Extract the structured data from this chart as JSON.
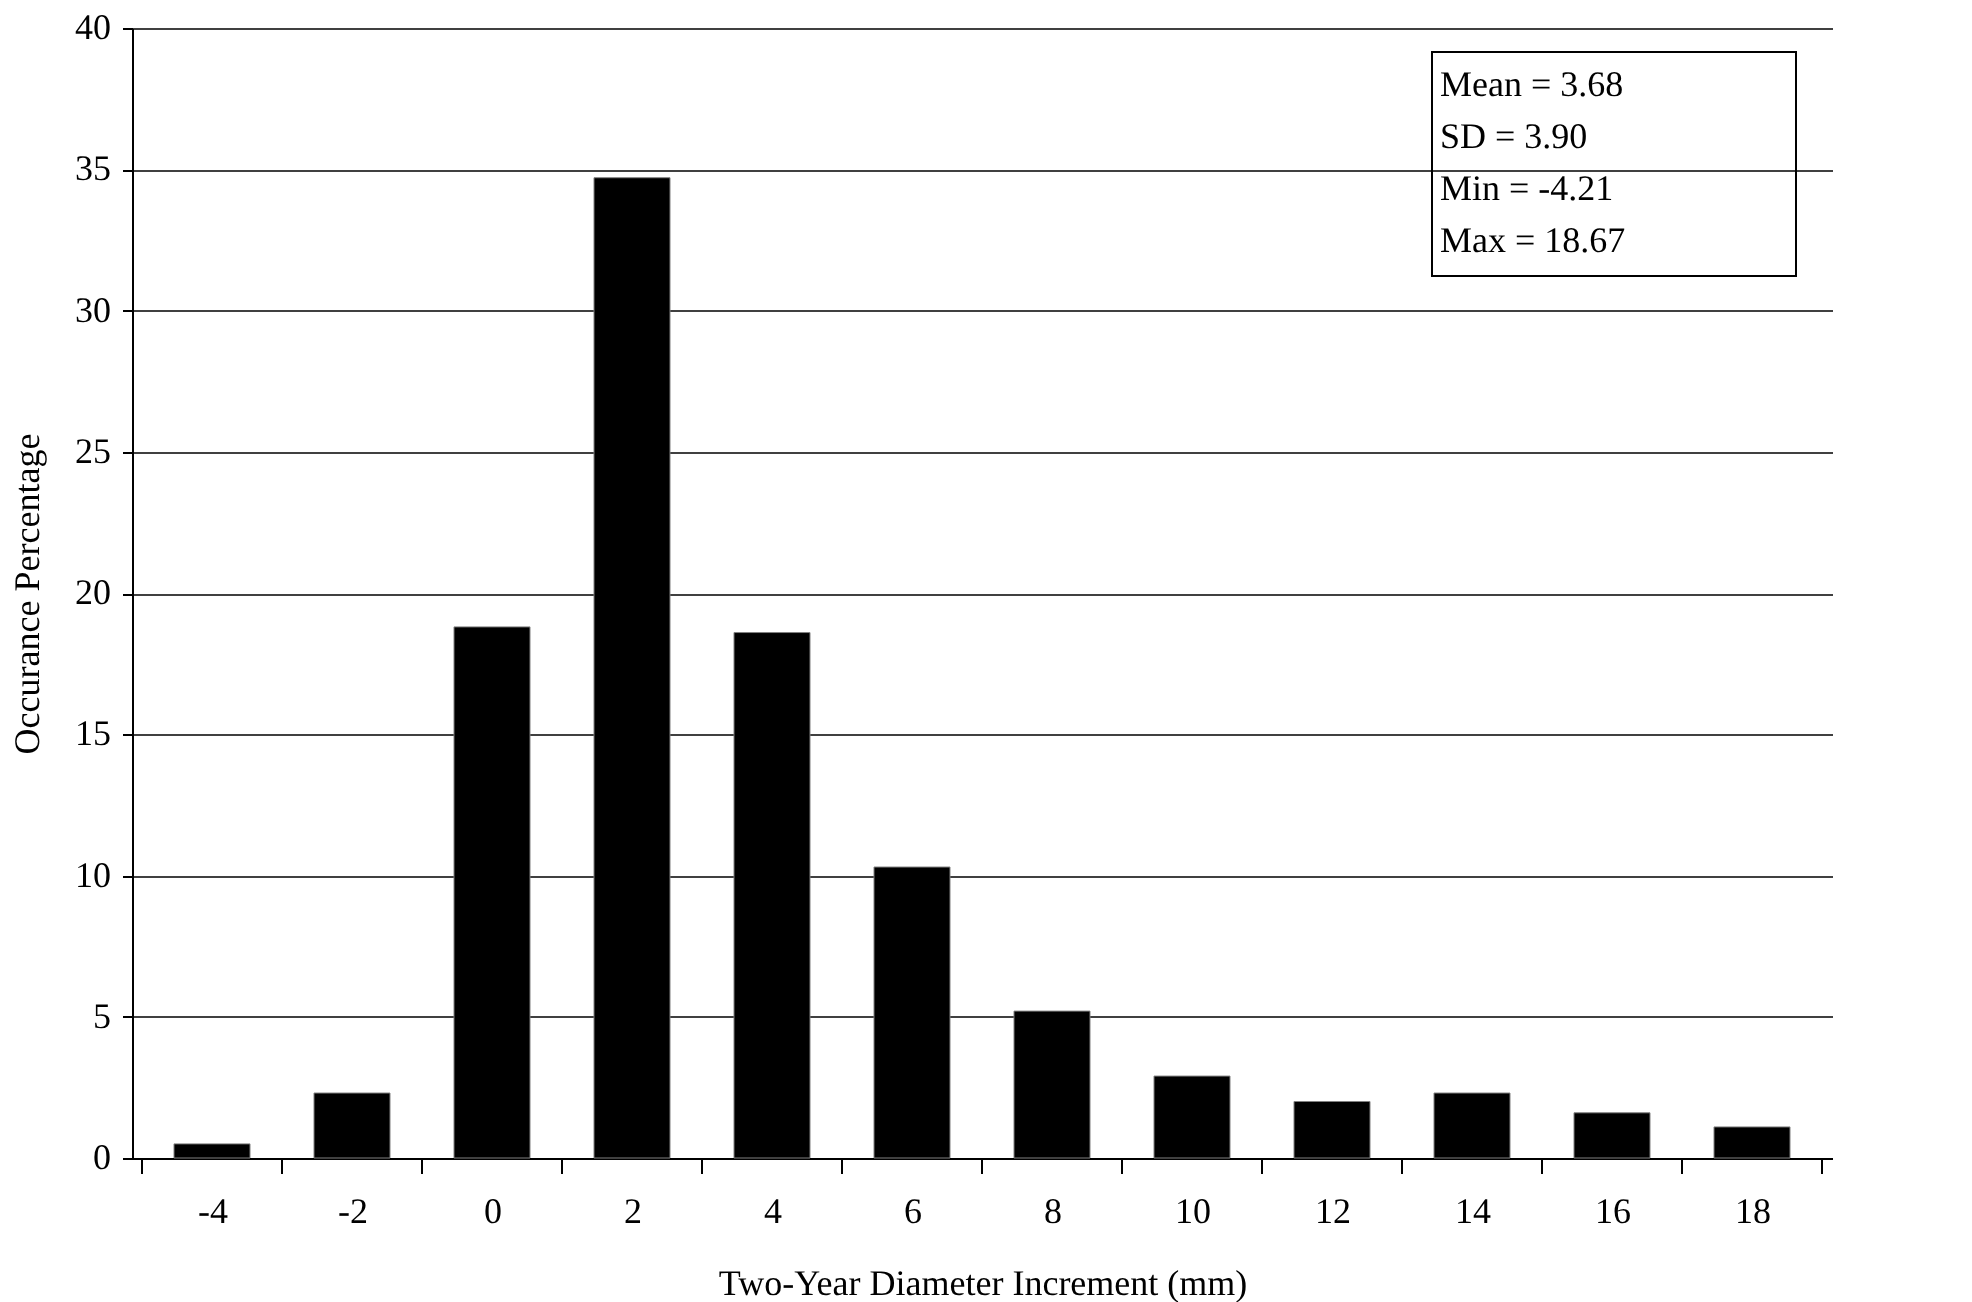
{
  "chart_data": {
    "type": "bar",
    "xlabel": "Two-Year Diameter Increment (mm)",
    "ylabel": "Occurance Percentage",
    "categories": [
      "-4",
      "-2",
      "0",
      "2",
      "4",
      "6",
      "8",
      "10",
      "12",
      "14",
      "16",
      "18"
    ],
    "values": [
      0.5,
      2.3,
      18.8,
      34.7,
      18.6,
      10.3,
      5.2,
      2.9,
      2.0,
      2.3,
      1.6,
      1.1
    ],
    "color": "#000000",
    "ylim": [
      0,
      40
    ],
    "yticks": [
      0,
      5,
      10,
      15,
      20,
      25,
      30,
      35,
      40
    ],
    "grid": "y",
    "annotations": [
      "Mean = 3.68",
      "SD = 3.90",
      "Min = -4.21",
      "Max = 18.67"
    ]
  }
}
